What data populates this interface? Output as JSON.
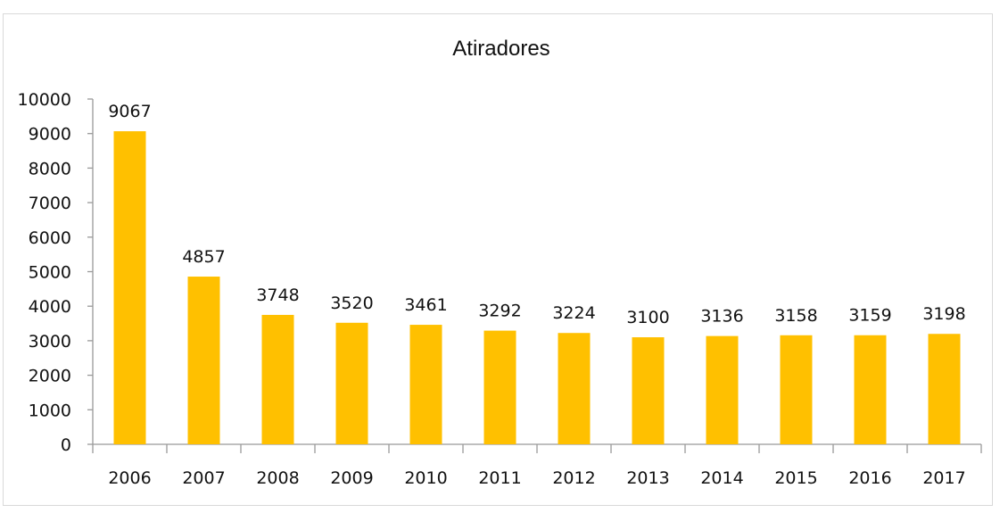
{
  "chart_data": {
    "type": "bar",
    "title": "Atiradores",
    "xlabel": "",
    "ylabel": "",
    "categories": [
      "2006",
      "2007",
      "2008",
      "2009",
      "2010",
      "2011",
      "2012",
      "2013",
      "2014",
      "2015",
      "2016",
      "2017"
    ],
    "series": [
      {
        "values": [
          9067,
          4857,
          3748,
          3520,
          3461,
          3292,
          3224,
          3100,
          3136,
          3158,
          3159,
          3198
        ],
        "color": "#ffc000"
      }
    ],
    "ylim": [
      0,
      10000
    ],
    "yticks": [
      0,
      1000,
      2000,
      3000,
      4000,
      5000,
      6000,
      7000,
      8000,
      9000,
      10000
    ],
    "data_labels": true,
    "grid": false,
    "legend": "none"
  }
}
